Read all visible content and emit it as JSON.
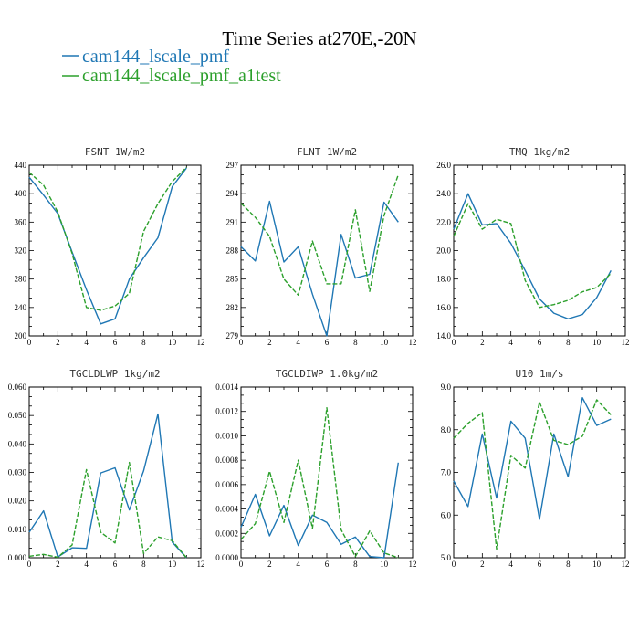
{
  "figure": {
    "title": "Time Series at270E,-20N",
    "legend": [
      {
        "label": "cam144_lscale_pmf",
        "color": "#1f77b4",
        "dash": "solid"
      },
      {
        "label": "cam144_lscale_pmf_a1test",
        "color": "#2ca02c",
        "dash": "dashed"
      }
    ]
  },
  "chart_data": [
    {
      "type": "line",
      "title": "FSNT   1W/m2",
      "xlim": [
        0,
        12
      ],
      "ylim": [
        200,
        440
      ],
      "x_ticks": [
        "0",
        "2",
        "4",
        "6",
        "8",
        "10",
        "12"
      ],
      "y_ticks": [
        "200",
        "240",
        "280",
        "320",
        "360",
        "400",
        "440"
      ],
      "x": [
        0,
        1,
        2,
        3,
        4,
        5,
        6,
        7,
        8,
        9,
        10,
        11
      ],
      "series": [
        {
          "name": "cam144_lscale_pmf",
          "values": [
            423,
            398,
            372,
            318,
            265,
            217,
            224,
            280,
            310,
            338,
            410,
            436
          ]
        },
        {
          "name": "cam144_lscale_pmf_a1test",
          "values": [
            430,
            412,
            374,
            316,
            240,
            236,
            242,
            260,
            347,
            386,
            417,
            437
          ]
        }
      ]
    },
    {
      "type": "line",
      "title": "FLNT   1W/m2",
      "xlim": [
        0,
        12
      ],
      "ylim": [
        279,
        297
      ],
      "x_ticks": [
        "0",
        "2",
        "4",
        "6",
        "8",
        "10",
        "12"
      ],
      "y_ticks": [
        "279",
        "282",
        "285",
        "288",
        "291",
        "294",
        "297"
      ],
      "x": [
        0,
        1,
        2,
        3,
        4,
        5,
        6,
        7,
        8,
        9,
        10,
        11
      ],
      "series": [
        {
          "name": "cam144_lscale_pmf",
          "values": [
            288.4,
            286.9,
            293.2,
            286.8,
            288.4,
            283.4,
            279.0,
            289.7,
            285.1,
            285.5,
            293.1,
            291.0
          ]
        },
        {
          "name": "cam144_lscale_pmf_a1test",
          "values": [
            293.0,
            291.5,
            289.5,
            285.0,
            283.3,
            289.0,
            284.5,
            284.5,
            292.3,
            283.7,
            291.7,
            296.0
          ]
        }
      ]
    },
    {
      "type": "line",
      "title": "TMQ   1kg/m2",
      "xlim": [
        0,
        12
      ],
      "ylim": [
        14.0,
        26.0
      ],
      "x_ticks": [
        "0",
        "2",
        "4",
        "6",
        "8",
        "10",
        "12"
      ],
      "y_ticks": [
        "14.0",
        "16.0",
        "18.0",
        "20.0",
        "22.0",
        "24.0",
        "26.0"
      ],
      "x": [
        0,
        1,
        2,
        3,
        4,
        5,
        6,
        7,
        8,
        9,
        10,
        11
      ],
      "series": [
        {
          "name": "cam144_lscale_pmf",
          "values": [
            21.5,
            24.0,
            21.8,
            21.9,
            20.5,
            18.6,
            16.6,
            15.6,
            15.2,
            15.5,
            16.7,
            18.6
          ]
        },
        {
          "name": "cam144_lscale_pmf_a1test",
          "values": [
            21.0,
            23.3,
            21.5,
            22.2,
            21.9,
            17.9,
            16.0,
            16.2,
            16.5,
            17.1,
            17.4,
            18.4
          ]
        }
      ]
    },
    {
      "type": "line",
      "title": "TGCLDLWP   1kg/m2",
      "xlim": [
        0,
        12
      ],
      "ylim": [
        0.0,
        0.06
      ],
      "x_ticks": [
        "0",
        "2",
        "4",
        "6",
        "8",
        "10",
        "12"
      ],
      "y_ticks": [
        "0.000",
        "0.010",
        "0.020",
        "0.030",
        "0.040",
        "0.050",
        "0.060"
      ],
      "x": [
        0,
        1,
        2,
        3,
        4,
        5,
        6,
        7,
        8,
        9,
        10,
        11
      ],
      "series": [
        {
          "name": "cam144_lscale_pmf",
          "values": [
            0.009,
            0.0165,
            0.0003,
            0.0035,
            0.0033,
            0.0298,
            0.0316,
            0.0168,
            0.0305,
            0.0505,
            0.0055,
            0.0
          ]
        },
        {
          "name": "cam144_lscale_pmf_a1test",
          "values": [
            0.0005,
            0.0012,
            0.0002,
            0.0045,
            0.031,
            0.009,
            0.0052,
            0.0335,
            0.0015,
            0.0073,
            0.006,
            0.0
          ]
        }
      ]
    },
    {
      "type": "line",
      "title": "TGCLDIWP   1.0kg/m2",
      "xlim": [
        0,
        12
      ],
      "ylim": [
        0.0,
        0.0014
      ],
      "x_ticks": [
        "0",
        "2",
        "4",
        "6",
        "8",
        "10",
        "12"
      ],
      "y_ticks": [
        "0.0000",
        "0.0002",
        "0.0004",
        "0.0006",
        "0.0008",
        "0.0010",
        "0.0012",
        "0.0014"
      ],
      "x": [
        0,
        1,
        2,
        3,
        4,
        5,
        6,
        7,
        8,
        9,
        10,
        11
      ],
      "series": [
        {
          "name": "cam144_lscale_pmf",
          "values": [
            0.00025,
            0.00052,
            0.00018,
            0.00043,
            0.0001,
            0.00035,
            0.00029,
            0.00011,
            0.00017,
            1e-05,
            0.0,
            0.00078
          ]
        },
        {
          "name": "cam144_lscale_pmf_a1test",
          "values": [
            0.00015,
            0.00028,
            0.00071,
            0.00029,
            0.0008,
            0.00024,
            0.00123,
            0.00023,
            1e-05,
            0.00022,
            4e-05,
            0.0
          ]
        }
      ]
    },
    {
      "type": "line",
      "title": "U10   1m/s",
      "xlim": [
        0,
        12
      ],
      "ylim": [
        5.0,
        9.0
      ],
      "x_ticks": [
        "0",
        "2",
        "4",
        "6",
        "8",
        "10",
        "12"
      ],
      "y_ticks": [
        "5.0",
        "6.0",
        "7.0",
        "8.0",
        "9.0"
      ],
      "x": [
        0,
        1,
        2,
        3,
        4,
        5,
        6,
        7,
        8,
        9,
        10,
        11
      ],
      "series": [
        {
          "name": "cam144_lscale_pmf",
          "values": [
            6.8,
            6.2,
            7.9,
            6.4,
            8.2,
            7.8,
            5.9,
            7.9,
            6.9,
            8.75,
            8.1,
            8.25
          ]
        },
        {
          "name": "cam144_lscale_pmf_a1test",
          "values": [
            7.8,
            8.15,
            8.4,
            5.2,
            7.4,
            7.1,
            8.65,
            7.75,
            7.65,
            7.85,
            8.7,
            8.35
          ]
        }
      ]
    }
  ]
}
